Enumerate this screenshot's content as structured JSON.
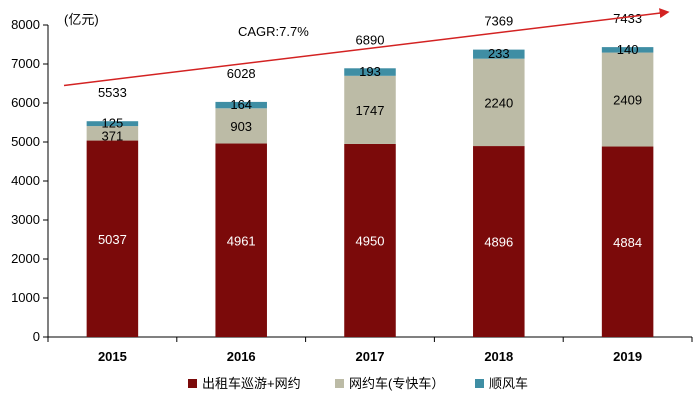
{
  "chart_data": {
    "type": "bar",
    "stacked": true,
    "unit_label": "(亿元)",
    "annotation": "CAGR:7.7%",
    "categories": [
      "2015",
      "2016",
      "2017",
      "2018",
      "2019"
    ],
    "series": [
      {
        "name": "出租车巡游+网约",
        "color": "#7b0a0a",
        "values": [
          5037,
          4961,
          4950,
          4896,
          4884
        ]
      },
      {
        "name": "网约车(专快车）",
        "color": "#bcbba6",
        "values": [
          371,
          903,
          1747,
          2240,
          2409
        ]
      },
      {
        "name": "顺风车",
        "color": "#3f8ea4",
        "values": [
          125,
          164,
          193,
          233,
          140
        ]
      }
    ],
    "totals": [
      5533,
      6028,
      6890,
      7369,
      7433
    ],
    "yticks": [
      0,
      1000,
      2000,
      3000,
      4000,
      5000,
      6000,
      7000,
      8000
    ],
    "ylim": [
      0,
      8000
    ],
    "legend_position": "bottom",
    "grid": false,
    "arrow_color": "#d32222"
  }
}
